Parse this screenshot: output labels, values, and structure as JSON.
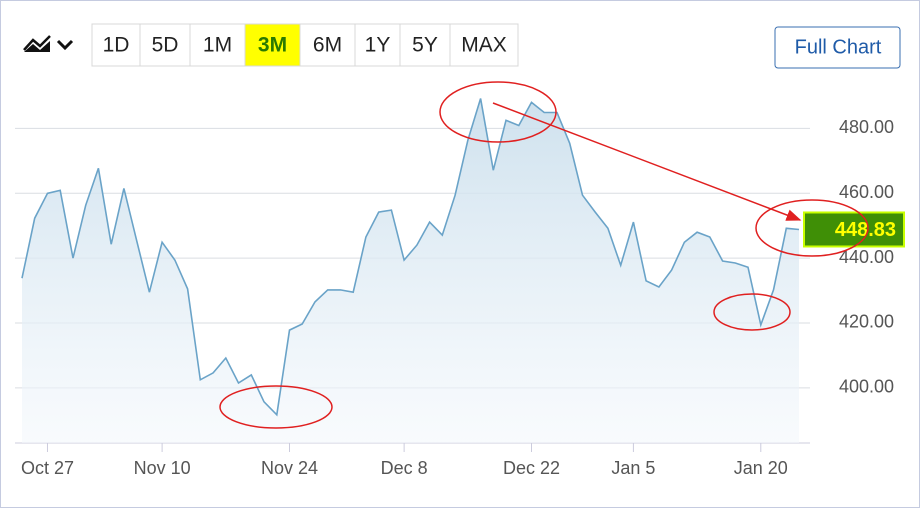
{
  "chart_data": {
    "type": "area",
    "range_buttons": [
      "1D",
      "5D",
      "1M",
      "3M",
      "6M",
      "1Y",
      "5Y",
      "MAX"
    ],
    "active_range": "3M",
    "full_chart_button": "Full Chart",
    "categories": [
      null,
      null,
      "Oct 27",
      null,
      null,
      null,
      null,
      null,
      null,
      null,
      null,
      "Nov 10",
      null,
      null,
      null,
      null,
      null,
      null,
      null,
      null,
      null,
      "Nov 24",
      null,
      null,
      null,
      null,
      null,
      null,
      null,
      null,
      "Dec 8",
      null,
      null,
      null,
      null,
      null,
      null,
      null,
      null,
      null,
      "Dec 22",
      null,
      null,
      null,
      null,
      null,
      null,
      null,
      "Jan 5",
      null,
      null,
      null,
      null,
      null,
      null,
      null,
      null,
      null,
      "Jan 20",
      null,
      null,
      null
    ],
    "values": [
      433.8,
      452.3,
      460,
      460.9,
      440,
      456.3,
      467.7,
      444.3,
      461.5,
      445.5,
      429.5,
      444.9,
      439.4,
      430.5,
      402.5,
      404.6,
      409.2,
      401.5,
      404,
      395.7,
      391.7,
      417.8,
      419.7,
      426.5,
      430.2,
      430.2,
      429.5,
      446.5,
      454.2,
      454.8,
      439.4,
      444,
      451.1,
      447.1,
      459.4,
      476.3,
      489.2,
      467.1,
      482.5,
      480.9,
      488,
      484.9,
      484.9,
      475.4,
      459.4,
      454.2,
      449.2,
      437.8,
      451.1,
      433,
      431.1,
      436.3,
      444.9,
      448,
      446.5,
      439.1,
      438.5,
      437.2,
      419.4,
      430.2,
      449.2,
      448.83
    ],
    "color": "#6aa3c8",
    "ylim": [
      383,
      498
    ],
    "yticks": [
      {
        "value": 400,
        "label": "400.00"
      },
      {
        "value": 420,
        "label": "420.00"
      },
      {
        "value": 440,
        "label": "440.00"
      },
      {
        "value": 460,
        "label": "460.00"
      },
      {
        "value": 480,
        "label": "480.00"
      }
    ],
    "grid": true
  }
}
